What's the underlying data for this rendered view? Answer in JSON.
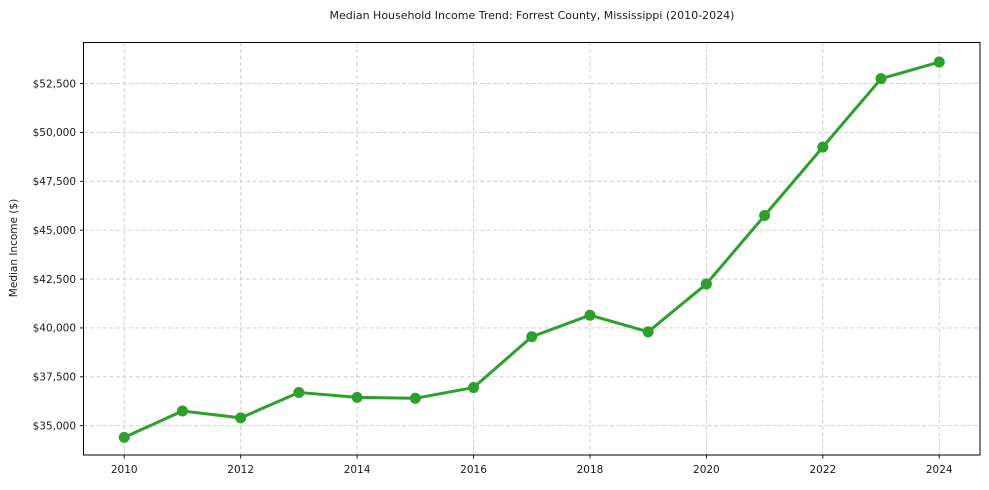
{
  "chart_data": {
    "type": "line",
    "title": "Median Household Income Trend: Forrest County, Mississippi (2010-2024)",
    "xlabel": "",
    "ylabel": "Median Income ($)",
    "x": [
      2010,
      2011,
      2012,
      2013,
      2014,
      2015,
      2016,
      2017,
      2018,
      2019,
      2020,
      2021,
      2022,
      2023,
      2024
    ],
    "values": [
      34400,
      35750,
      35400,
      36700,
      36450,
      36400,
      36950,
      39550,
      40650,
      39800,
      42250,
      45750,
      49250,
      52750,
      53600
    ],
    "xlim": [
      2009.3,
      2024.7
    ],
    "ylim": [
      33500,
      54600
    ],
    "x_ticks": [
      2010,
      2012,
      2014,
      2016,
      2018,
      2020,
      2022,
      2024
    ],
    "x_tick_labels": [
      "2010",
      "2012",
      "2014",
      "2016",
      "2018",
      "2020",
      "2022",
      "2024"
    ],
    "y_ticks": [
      35000,
      37500,
      40000,
      42500,
      45000,
      47500,
      50000,
      52500
    ],
    "y_tick_labels": [
      "$35,000",
      "$37,500",
      "$40,000",
      "$42,500",
      "$45,000",
      "$47,500",
      "$50,000",
      "$52,500"
    ],
    "grid": true,
    "grid_style": "dashed",
    "legend": false,
    "marker": "circle",
    "line_color": "#2ca02c"
  },
  "colors": {
    "line": "#2ca02c",
    "grid": "#c9c9c9",
    "spine": "#000000",
    "text": "#1a1a1a",
    "background": "#ffffff"
  }
}
